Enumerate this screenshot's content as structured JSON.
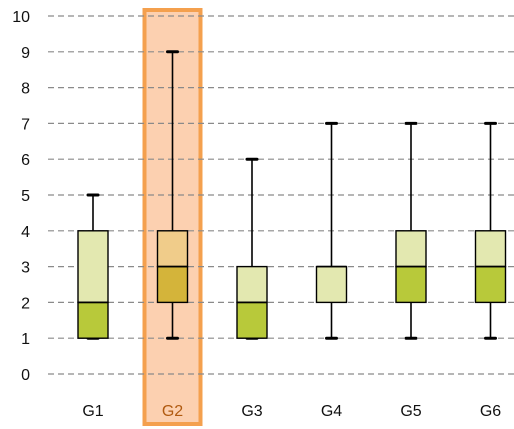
{
  "chart_data": {
    "type": "boxplot",
    "categories": [
      "G1",
      "G2",
      "G3",
      "G4",
      "G5",
      "G6"
    ],
    "boxes": [
      {
        "name": "G1",
        "min": 1,
        "q1": 1,
        "median": 2,
        "q3": 4,
        "max": 5
      },
      {
        "name": "G2",
        "min": 1,
        "q1": 2,
        "median": 3,
        "q3": 4,
        "max": 9
      },
      {
        "name": "G3",
        "min": 1,
        "q1": 1,
        "median": 2,
        "q3": 3,
        "max": 6
      },
      {
        "name": "G4",
        "min": 1,
        "q1": 2,
        "median": 3,
        "q3": 3,
        "max": 7
      },
      {
        "name": "G5",
        "min": 1,
        "q1": 2,
        "median": 3,
        "q3": 4,
        "max": 7
      },
      {
        "name": "G6",
        "min": 1,
        "q1": 2,
        "median": 3,
        "q3": 4,
        "max": 7
      }
    ],
    "highlighted_category": "G2",
    "ylim": [
      0,
      10
    ],
    "yticks": [
      0,
      1,
      2,
      3,
      4,
      5,
      6,
      7,
      8,
      9,
      10
    ],
    "grid": "horizontal dashed",
    "legend": "none",
    "title": "",
    "xlabel": "",
    "ylabel": ""
  },
  "colors": {
    "upper_box": "#e3e8b0",
    "lower_box": "#b8c93a",
    "highlight_fill": "#fcd0b0",
    "highlight_border": "#f4a04e",
    "highlight_upper_box": "#f0cc8a",
    "highlight_lower_box": "#d4b43a",
    "grid": "#8a8a8a"
  }
}
